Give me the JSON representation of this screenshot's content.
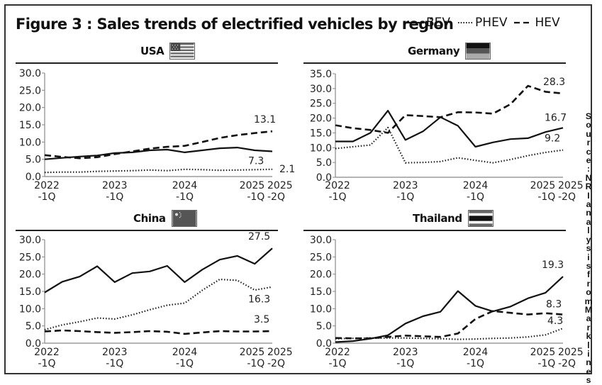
{
  "figure": {
    "title": "Figure 3 : Sales trends of electrified vehicles by region",
    "source": "Source:NRIanalysisfromMarklines"
  },
  "legend": [
    {
      "name": "BEV",
      "style": "solid"
    },
    {
      "name": "PHEV",
      "style": "dotted"
    },
    {
      "name": "HEV",
      "style": "dashed"
    }
  ],
  "chart_data": [
    {
      "type": "line",
      "title": "USA",
      "flag": "usa-flag",
      "xlabel": "",
      "ylabel": "",
      "x": [
        "2022-1Q",
        "2022-2Q",
        "2022-3Q",
        "2022-4Q",
        "2023-1Q",
        "2023-2Q",
        "2023-3Q",
        "2023-4Q",
        "2024-1Q",
        "2024-2Q",
        "2024-3Q",
        "2024-4Q",
        "2025-1Q",
        "2025-2Q"
      ],
      "x_tick_labels": [
        {
          "index": 0,
          "line1": "2022",
          "line2": "-1Q"
        },
        {
          "index": 4,
          "line1": "2023",
          "line2": "-1Q"
        },
        {
          "index": 8,
          "line1": "2024",
          "line2": "-1Q"
        },
        {
          "index": 12,
          "line1": "2025",
          "line2": "-1Q"
        },
        {
          "index": 13,
          "line1": "2025",
          "line2": "-2Q"
        }
      ],
      "ylim": [
        0,
        30
      ],
      "y_ticks": [
        "0.0",
        "5.0",
        "10.0",
        "15.0",
        "20.0",
        "25.0",
        "30.0"
      ],
      "series": [
        {
          "name": "BEV",
          "style": "solid",
          "values": [
            5.0,
            5.4,
            5.8,
            6.1,
            6.8,
            7.0,
            7.6,
            7.8,
            7.0,
            7.6,
            8.2,
            8.4,
            7.6,
            7.3
          ],
          "end_label": "7.3"
        },
        {
          "name": "PHEV",
          "style": "dotted",
          "values": [
            1.2,
            1.3,
            1.3,
            1.5,
            1.6,
            1.7,
            1.9,
            1.7,
            2.1,
            2.0,
            1.8,
            1.9,
            2.0,
            2.1
          ],
          "end_label": "2.1"
        },
        {
          "name": "HEV",
          "style": "dashed",
          "values": [
            6.2,
            5.7,
            5.3,
            5.6,
            6.5,
            7.3,
            8.1,
            8.6,
            8.9,
            10.0,
            11.2,
            12.0,
            12.6,
            13.1
          ],
          "end_label": "13.1"
        }
      ]
    },
    {
      "type": "line",
      "title": "Germany",
      "flag": "germany-flag",
      "xlabel": "",
      "ylabel": "",
      "x": [
        "2022-1Q",
        "2022-2Q",
        "2022-3Q",
        "2022-4Q",
        "2023-1Q",
        "2023-2Q",
        "2023-3Q",
        "2023-4Q",
        "2024-1Q",
        "2024-2Q",
        "2024-3Q",
        "2024-4Q",
        "2025-1Q",
        "2025-2Q"
      ],
      "x_tick_labels": [
        {
          "index": 0,
          "line1": "2022",
          "line2": "-1Q"
        },
        {
          "index": 4,
          "line1": "2023",
          "line2": "-1Q"
        },
        {
          "index": 8,
          "line1": "2024",
          "line2": "-1Q"
        },
        {
          "index": 12,
          "line1": "2025",
          "line2": "-1Q"
        },
        {
          "index": 13,
          "line1": "2025",
          "line2": "-2Q"
        }
      ],
      "ylim": [
        0,
        35
      ],
      "y_ticks": [
        "0.0",
        "5.0",
        "10.0",
        "15.0",
        "20.0",
        "25.0",
        "30.0",
        "35.0"
      ],
      "series": [
        {
          "name": "BEV",
          "style": "solid",
          "values": [
            12.1,
            12.1,
            15.0,
            22.5,
            12.6,
            15.5,
            20.3,
            17.4,
            10.3,
            11.8,
            12.9,
            13.2,
            15.3,
            16.7
          ],
          "end_label": "16.7"
        },
        {
          "name": "PHEV",
          "style": "dotted",
          "values": [
            9.7,
            10.3,
            10.9,
            16.8,
            4.9,
            5.0,
            5.3,
            6.6,
            5.7,
            4.9,
            6.0,
            7.3,
            8.4,
            9.2
          ],
          "end_label": "9.2"
        },
        {
          "name": "HEV",
          "style": "dashed",
          "values": [
            17.6,
            16.6,
            16.0,
            15.0,
            21.0,
            20.7,
            20.3,
            22.0,
            21.9,
            21.5,
            24.7,
            30.9,
            28.9,
            28.3
          ],
          "end_label": "28.3"
        }
      ]
    },
    {
      "type": "line",
      "title": "China",
      "flag": "china-flag",
      "xlabel": "",
      "ylabel": "",
      "x": [
        "2022-1Q",
        "2022-2Q",
        "2022-3Q",
        "2022-4Q",
        "2023-1Q",
        "2023-2Q",
        "2023-3Q",
        "2023-4Q",
        "2024-1Q",
        "2024-2Q",
        "2024-3Q",
        "2024-4Q",
        "2025-1Q",
        "2025-2Q"
      ],
      "x_tick_labels": [
        {
          "index": 0,
          "line1": "2022",
          "line2": "-1Q"
        },
        {
          "index": 4,
          "line1": "2023",
          "line2": "-1Q"
        },
        {
          "index": 8,
          "line1": "2024",
          "line2": "-1Q"
        },
        {
          "index": 12,
          "line1": "2025",
          "line2": "-1Q"
        },
        {
          "index": 13,
          "line1": "2025",
          "line2": "-2Q"
        }
      ],
      "ylim": [
        0,
        30
      ],
      "y_ticks": [
        "0.0",
        "5.0",
        "10.0",
        "15.0",
        "20.0",
        "25.0",
        "30.0"
      ],
      "series": [
        {
          "name": "BEV",
          "style": "solid",
          "values": [
            14.7,
            17.8,
            19.3,
            22.3,
            17.7,
            20.3,
            20.8,
            22.4,
            17.7,
            21.3,
            24.2,
            25.3,
            23.0,
            27.5
          ],
          "end_label": "27.5"
        },
        {
          "name": "PHEV",
          "style": "dotted",
          "values": [
            3.9,
            5.3,
            6.2,
            7.3,
            7.0,
            8.2,
            9.7,
            11.0,
            11.6,
            15.3,
            18.5,
            18.2,
            15.4,
            16.3
          ],
          "end_label": "16.3"
        },
        {
          "name": "HEV",
          "style": "dashed",
          "values": [
            3.4,
            3.7,
            3.5,
            3.2,
            3.0,
            3.2,
            3.5,
            3.3,
            2.7,
            3.1,
            3.5,
            3.4,
            3.4,
            3.5
          ],
          "end_label": "3.5"
        }
      ]
    },
    {
      "type": "line",
      "title": "Thailand",
      "flag": "thailand-flag",
      "xlabel": "",
      "ylabel": "",
      "x": [
        "2022-1Q",
        "2022-2Q",
        "2022-3Q",
        "2022-4Q",
        "2023-1Q",
        "2023-2Q",
        "2023-3Q",
        "2023-4Q",
        "2024-1Q",
        "2024-2Q",
        "2024-3Q",
        "2024-4Q",
        "2025-1Q",
        "2025-2Q"
      ],
      "x_tick_labels": [
        {
          "index": 0,
          "line1": "2022",
          "line2": "-1Q"
        },
        {
          "index": 4,
          "line1": "2023",
          "line2": "-1Q"
        },
        {
          "index": 8,
          "line1": "2024",
          "line2": "-1Q"
        },
        {
          "index": 12,
          "line1": "2025",
          "line2": "-1Q"
        },
        {
          "index": 13,
          "line1": "2025",
          "line2": "-2Q"
        }
      ],
      "ylim": [
        0,
        30
      ],
      "y_ticks": [
        "0.0",
        "5.0",
        "10.0",
        "15.0",
        "20.0",
        "25.0",
        "30.0"
      ],
      "series": [
        {
          "name": "BEV",
          "style": "solid",
          "values": [
            0.3,
            0.6,
            1.3,
            2.3,
            5.7,
            7.8,
            9.1,
            15.1,
            10.8,
            9.2,
            10.6,
            13.0,
            14.6,
            19.3
          ],
          "end_label": "19.3"
        },
        {
          "name": "PHEV",
          "style": "dotted",
          "values": [
            1.3,
            1.4,
            1.5,
            1.5,
            1.5,
            1.4,
            1.3,
            1.1,
            1.2,
            1.4,
            1.5,
            1.8,
            2.4,
            4.3
          ],
          "end_label": "4.3"
        },
        {
          "name": "HEV",
          "style": "dashed",
          "values": [
            1.5,
            1.4,
            1.4,
            1.8,
            2.2,
            2.0,
            1.8,
            2.8,
            7.0,
            9.3,
            8.8,
            8.3,
            8.7,
            8.3
          ],
          "end_label": "8.3"
        }
      ]
    }
  ]
}
